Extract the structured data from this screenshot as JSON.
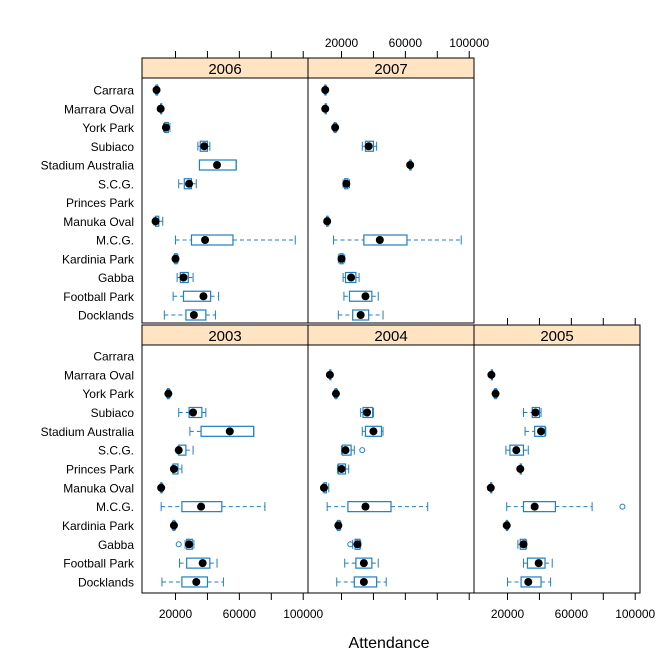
{
  "chart_data": {
    "type": "boxplot",
    "xlabel": "Attendance",
    "xlim": [
      -1000,
      103000
    ],
    "x_ticks": [
      20000,
      40000,
      60000,
      80000,
      100000
    ],
    "x_tick_labels": [
      "20000",
      "60000",
      "100000"
    ],
    "categories": [
      "Carrara",
      "Marrara Oval",
      "York Park",
      "Subiaco",
      "Stadium Australia",
      "S.C.G.",
      "Princes Park",
      "Manuka Oval",
      "M.C.G.",
      "Kardinia Park",
      "Gabba",
      "Football Park",
      "Docklands"
    ],
    "colors": {
      "box": "#1f7fc1",
      "median": "#000000",
      "strip": "#ffe4c4",
      "frame": "#000000"
    },
    "panels": [
      {
        "title": "2006",
        "boxes": {
          "Carrara": {
            "min": 7500,
            "q1": 7800,
            "median": 8100,
            "q3": 8700,
            "max": 9000
          },
          "Marrara Oval": {
            "min": 10700,
            "q1": 10700,
            "median": 10700,
            "q3": 10700,
            "max": 10700
          },
          "York Park": {
            "min": 12500,
            "q1": 13200,
            "median": 14000,
            "q3": 15500,
            "max": 16500
          },
          "Subiaco": {
            "min": 34000,
            "q1": 35500,
            "median": 38000,
            "q3": 40000,
            "max": 41500
          },
          "Stadium Australia": {
            "min": 35000,
            "q1": 35000,
            "median": 46000,
            "q3": 58000,
            "max": 58000
          },
          "S.C.G.": {
            "min": 22000,
            "q1": 25500,
            "median": 28500,
            "q3": 30000,
            "max": 33000
          },
          "Manuka Oval": {
            "min": 6500,
            "q1": 7500,
            "median": 7500,
            "q3": 9500,
            "max": 12000
          },
          "M.C.G.": {
            "min": 20000,
            "q1": 30000,
            "median": 38500,
            "q3": 56000,
            "max": 95000
          },
          "Kardinia Park": {
            "min": 19000,
            "q1": 19500,
            "median": 20000,
            "q3": 21000,
            "max": 21500
          },
          "Gabba": {
            "min": 21000,
            "q1": 23000,
            "median": 25000,
            "q3": 28000,
            "max": 31000
          },
          "Football Park": {
            "min": 18500,
            "q1": 25000,
            "median": 37500,
            "q3": 42000,
            "max": 47000
          },
          "Docklands": {
            "min": 13000,
            "q1": 26500,
            "median": 31500,
            "q3": 39000,
            "max": 45000
          }
        }
      },
      {
        "title": "2007",
        "boxes": {
          "Carrara": {
            "min": 9300,
            "q1": 9600,
            "median": 9800,
            "q3": 10200,
            "max": 10500
          },
          "Marrara Oval": {
            "min": 9800,
            "q1": 9800,
            "median": 9800,
            "q3": 9800,
            "max": 9800
          },
          "York Park": {
            "min": 15000,
            "q1": 15500,
            "median": 16000,
            "q3": 16500,
            "max": 17000
          },
          "Subiaco": {
            "min": 33000,
            "q1": 35000,
            "median": 37000,
            "q3": 40000,
            "max": 42000
          },
          "Stadium Australia": {
            "min": 62500,
            "q1": 62800,
            "median": 63000,
            "q3": 63500,
            "max": 63800
          },
          "S.C.G.": {
            "min": 21000,
            "q1": 22000,
            "median": 23000,
            "q3": 24000,
            "max": 25000
          },
          "Manuka Oval": {
            "min": 10500,
            "q1": 10700,
            "median": 11000,
            "q3": 11500,
            "max": 12000
          },
          "M.C.G.": {
            "min": 15000,
            "q1": 34000,
            "median": 44000,
            "q3": 61000,
            "max": 95000
          },
          "Kardinia Park": {
            "min": 18000,
            "q1": 19000,
            "median": 20000,
            "q3": 21000,
            "max": 22000
          },
          "Gabba": {
            "min": 21000,
            "q1": 22500,
            "median": 26000,
            "q3": 29000,
            "max": 31000
          },
          "Football Park": {
            "min": 21500,
            "q1": 25000,
            "median": 35000,
            "q3": 39000,
            "max": 43000
          },
          "Docklands": {
            "min": 18000,
            "q1": 27000,
            "median": 32000,
            "q3": 37000,
            "max": 46000
          }
        }
      },
      {
        "title": "2003",
        "boxes": {
          "York Park": {
            "min": 14500,
            "q1": 15000,
            "median": 15500,
            "q3": 16000,
            "max": 16500
          },
          "Subiaco": {
            "min": 22000,
            "q1": 28500,
            "median": 31000,
            "q3": 36500,
            "max": 39000
          },
          "Stadium Australia": {
            "min": 29000,
            "q1": 36000,
            "median": 54000,
            "q3": 69000,
            "max": 69000
          },
          "S.C.G.": {
            "min": 21500,
            "q1": 22000,
            "median": 22000,
            "q3": 26500,
            "max": 31000
          },
          "Princes Park": {
            "min": 18000,
            "q1": 18500,
            "median": 19000,
            "q3": 21500,
            "max": 24000
          },
          "Manuka Oval": {
            "min": 10500,
            "q1": 10800,
            "median": 11000,
            "q3": 11500,
            "max": 12000
          },
          "M.C.G.": {
            "min": 11000,
            "q1": 24000,
            "median": 36000,
            "q3": 49000,
            "max": 76000
          },
          "Kardinia Park": {
            "min": 18000,
            "q1": 18500,
            "median": 19000,
            "q3": 19500,
            "max": 20000
          },
          "Gabba": {
            "min": 26000,
            "q1": 27000,
            "median": 28500,
            "q3": 30500,
            "max": 31500,
            "outliers": [
              22000
            ]
          },
          "Football Park": {
            "min": 22500,
            "q1": 27000,
            "median": 37000,
            "q3": 41500,
            "max": 46000
          },
          "Docklands": {
            "min": 11500,
            "q1": 24000,
            "median": 33000,
            "q3": 40000,
            "max": 50000
          }
        }
      },
      {
        "title": "2004",
        "boxes": {
          "Marrara Oval": {
            "min": 12700,
            "q1": 12700,
            "median": 12700,
            "q3": 12700,
            "max": 12700
          },
          "York Park": {
            "min": 15500,
            "q1": 16000,
            "median": 16500,
            "q3": 17000,
            "max": 17500
          },
          "Subiaco": {
            "min": 32000,
            "q1": 33500,
            "median": 36000,
            "q3": 39500,
            "max": 40000
          },
          "Stadium Australia": {
            "min": 33000,
            "q1": 35000,
            "median": 40000,
            "q3": 45000,
            "max": 46000
          },
          "S.C.G.": {
            "min": 20000,
            "q1": 20500,
            "median": 22500,
            "q3": 26000,
            "max": 28000,
            "outliers": [
              33000
            ]
          },
          "Princes Park": {
            "min": 17500,
            "q1": 18000,
            "median": 20000,
            "q3": 22500,
            "max": 24500
          },
          "Manuka Oval": {
            "min": 8500,
            "q1": 9000,
            "median": 9000,
            "q3": 10500,
            "max": 12000
          },
          "M.C.G.": {
            "min": 11000,
            "q1": 24000,
            "median": 35000,
            "q3": 51000,
            "max": 74000
          },
          "Kardinia Park": {
            "min": 17000,
            "q1": 17500,
            "median": 18000,
            "q3": 19000,
            "max": 19500
          },
          "Gabba": {
            "min": 27000,
            "q1": 28500,
            "median": 30000,
            "q3": 31500,
            "max": 32000,
            "outliers": [
              25500
            ]
          },
          "Football Park": {
            "min": 22000,
            "q1": 29000,
            "median": 34000,
            "q3": 39000,
            "max": 43000
          },
          "Docklands": {
            "min": 17000,
            "q1": 28000,
            "median": 34000,
            "q3": 42000,
            "max": 48000
          }
        }
      },
      {
        "title": "2005",
        "boxes": {
          "Marrara Oval": {
            "min": 9900,
            "q1": 9900,
            "median": 9900,
            "q3": 9900,
            "max": 9900
          },
          "York Park": {
            "min": 11500,
            "q1": 12000,
            "median": 12500,
            "q3": 13000,
            "max": 13500
          },
          "Subiaco": {
            "min": 30000,
            "q1": 35500,
            "median": 37500,
            "q3": 40000,
            "max": 41000
          },
          "Stadium Australia": {
            "min": 31000,
            "q1": 37000,
            "median": 41000,
            "q3": 43500,
            "max": 44000
          },
          "S.C.G.": {
            "min": 19000,
            "q1": 21500,
            "median": 25500,
            "q3": 30000,
            "max": 33000
          },
          "Princes Park": {
            "min": 28000,
            "q1": 28000,
            "median": 28000,
            "q3": 28000,
            "max": 28000
          },
          "Manuka Oval": {
            "min": 9500,
            "q1": 9500,
            "median": 9500,
            "q3": 9500,
            "max": 9600
          },
          "M.C.G.": {
            "min": 19500,
            "q1": 30000,
            "median": 37000,
            "q3": 50000,
            "max": 73000,
            "outliers": [
              92000
            ]
          },
          "Kardinia Park": {
            "min": 19000,
            "q1": 19300,
            "median": 19500,
            "q3": 20000,
            "max": 20500
          },
          "Gabba": {
            "min": 26500,
            "q1": 28000,
            "median": 30000,
            "q3": 31500,
            "max": 32000
          },
          "Football Park": {
            "min": 30000,
            "q1": 32500,
            "median": 39500,
            "q3": 43500,
            "max": 48000
          },
          "Docklands": {
            "min": 20000,
            "q1": 28500,
            "median": 33000,
            "q3": 41000,
            "max": 47000
          }
        }
      }
    ]
  }
}
